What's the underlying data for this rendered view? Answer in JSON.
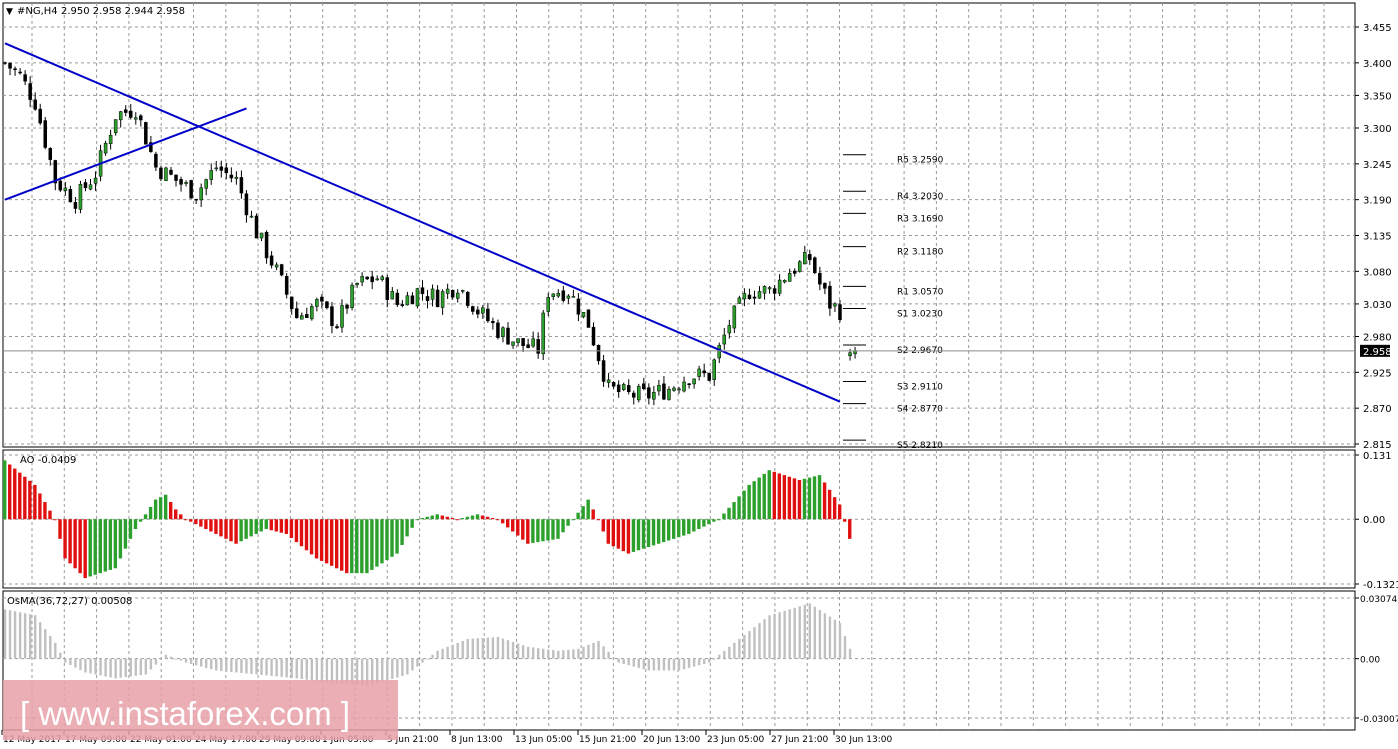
{
  "header": {
    "symbol": "#NG,H4",
    "ohlc": "2.950 2.958 2.944 2.958"
  },
  "price_labels": [
    "3.455",
    "3.400",
    "3.350",
    "3.300",
    "3.245",
    "3.190",
    "3.135",
    "3.080",
    "3.030",
    "2.980",
    "2.925",
    "2.870",
    "2.815"
  ],
  "current_price": "2.958",
  "pivots": [
    {
      "label": "R5 3.2590",
      "value": 3.259
    },
    {
      "label": "R4 3.2030",
      "value": 3.203
    },
    {
      "label": "R3 3.1690",
      "value": 3.169
    },
    {
      "label": "R2 3.1180",
      "value": 3.118
    },
    {
      "label": "R1 3.0570",
      "value": 3.057
    },
    {
      "label": "S1 3.0230",
      "value": 3.023
    },
    {
      "label": "S2 2.9670",
      "value": 2.967
    },
    {
      "label": "S3 2.9110",
      "value": 2.911
    },
    {
      "label": "S4 2.8770",
      "value": 2.877
    },
    {
      "label": "S5 2.8210",
      "value": 2.821
    }
  ],
  "time_labels": [
    "12 May 2017",
    "17 May 09:00",
    "22 May 01:00",
    "24 May 17:00",
    "29 May 09:00",
    "1 Jun 05:00",
    "5 Jun 21:00",
    "8 Jun 13:00",
    "13 Jun 05:00",
    "15 Jun 21:00",
    "20 Jun 13:00",
    "23 Jun 05:00",
    "27 Jun 21:00",
    "30 Jun 13:00"
  ],
  "ao_panel": {
    "label": "AO -0.0409",
    "scale": [
      "0.131",
      "0.00",
      "-0.1321"
    ]
  },
  "osma_panel": {
    "label": "OsMA(36,72,27) 0.00508",
    "scale": [
      "0.03074",
      "0.00",
      "-0.03007"
    ]
  },
  "watermark": "[ www.instaforex.com ]",
  "colors": {
    "bull": "#2ca02c",
    "bear": "#e01010",
    "trend": "#0000c8",
    "hist": "#c0c0c0"
  },
  "chart_data": [
    {
      "type": "candlestick",
      "title": "#NG,H4",
      "ylim": [
        2.815,
        3.455
      ],
      "x_range": [
        "12 May 2017",
        "30 Jun 13:00"
      ],
      "close_anchors": [
        [
          0,
          3.4
        ],
        [
          3,
          3.38
        ],
        [
          6,
          3.34
        ],
        [
          10,
          3.22
        ],
        [
          14,
          3.19
        ],
        [
          18,
          3.23
        ],
        [
          22,
          3.32
        ],
        [
          26,
          3.33
        ],
        [
          30,
          3.24
        ],
        [
          34,
          3.22
        ],
        [
          38,
          3.2
        ],
        [
          42,
          3.24
        ],
        [
          46,
          3.22
        ],
        [
          50,
          3.14
        ],
        [
          54,
          3.08
        ],
        [
          58,
          3.01
        ],
        [
          62,
          3.03
        ],
        [
          66,
          3.0
        ],
        [
          70,
          3.06
        ],
        [
          74,
          3.07
        ],
        [
          78,
          3.03
        ],
        [
          82,
          3.05
        ],
        [
          86,
          3.04
        ],
        [
          90,
          3.06
        ],
        [
          94,
          3.02
        ],
        [
          98,
          2.99
        ],
        [
          102,
          2.97
        ],
        [
          106,
          2.96
        ],
        [
          108,
          3.05
        ],
        [
          112,
          3.05
        ],
        [
          116,
          3.0
        ],
        [
          120,
          2.9
        ],
        [
          124,
          2.89
        ],
        [
          128,
          2.89
        ],
        [
          132,
          2.9
        ],
        [
          136,
          2.92
        ],
        [
          140,
          2.92
        ],
        [
          144,
          3.0
        ],
        [
          148,
          3.05
        ],
        [
          152,
          3.05
        ],
        [
          156,
          3.08
        ],
        [
          160,
          3.1
        ],
        [
          162,
          3.06
        ],
        [
          164,
          3.03
        ],
        [
          166,
          3.02
        ]
      ],
      "gap_after_index": 166,
      "last_bars_close": [
        2.955,
        2.958
      ],
      "trendlines": [
        {
          "from": [
            0,
            3.43
          ],
          "to": [
            166,
            2.88
          ]
        },
        {
          "from": [
            0,
            3.19
          ],
          "to": [
            48,
            3.33
          ]
        }
      ],
      "pivot_levels": [
        3.259,
        3.203,
        3.169,
        3.118,
        3.057,
        3.023,
        2.967,
        2.911,
        2.877,
        2.821
      ]
    },
    {
      "type": "bar",
      "title": "AO -0.0409",
      "ylim": [
        -0.1321,
        0.131
      ],
      "anchors": [
        [
          0,
          0.12
        ],
        [
          6,
          0.07
        ],
        [
          10,
          0.0
        ],
        [
          12,
          -0.08
        ],
        [
          16,
          -0.12
        ],
        [
          22,
          -0.1
        ],
        [
          26,
          -0.02
        ],
        [
          30,
          0.04
        ],
        [
          32,
          0.05
        ],
        [
          34,
          0.02
        ],
        [
          36,
          0.0
        ],
        [
          40,
          -0.02
        ],
        [
          46,
          -0.05
        ],
        [
          52,
          -0.02
        ],
        [
          56,
          -0.03
        ],
        [
          62,
          -0.08
        ],
        [
          68,
          -0.11
        ],
        [
          72,
          -0.11
        ],
        [
          78,
          -0.07
        ],
        [
          82,
          0.0
        ],
        [
          86,
          0.01
        ],
        [
          90,
          0.0
        ],
        [
          94,
          0.01
        ],
        [
          98,
          0.0
        ],
        [
          104,
          -0.05
        ],
        [
          110,
          -0.04
        ],
        [
          116,
          0.04
        ],
        [
          118,
          0.0
        ],
        [
          120,
          -0.05
        ],
        [
          124,
          -0.07
        ],
        [
          130,
          -0.05
        ],
        [
          136,
          -0.03
        ],
        [
          142,
          0.0
        ],
        [
          148,
          0.07
        ],
        [
          152,
          0.1
        ],
        [
          158,
          0.08
        ],
        [
          162,
          0.09
        ],
        [
          166,
          0.03
        ],
        [
          168,
          -0.04
        ]
      ],
      "last_value": -0.0409
    },
    {
      "type": "bar",
      "title": "OsMA(36,72,27) 0.00508",
      "ylim": [
        -0.03007,
        0.03074
      ],
      "anchors": [
        [
          0,
          0.025
        ],
        [
          6,
          0.022
        ],
        [
          10,
          0.008
        ],
        [
          12,
          -0.002
        ],
        [
          16,
          -0.007
        ],
        [
          22,
          -0.01
        ],
        [
          28,
          -0.008
        ],
        [
          32,
          0.002
        ],
        [
          36,
          -0.002
        ],
        [
          42,
          -0.006
        ],
        [
          50,
          -0.008
        ],
        [
          58,
          -0.01
        ],
        [
          64,
          -0.012
        ],
        [
          72,
          -0.014
        ],
        [
          80,
          -0.008
        ],
        [
          86,
          0.004
        ],
        [
          92,
          0.01
        ],
        [
          98,
          0.011
        ],
        [
          104,
          0.006
        ],
        [
          110,
          0.004
        ],
        [
          114,
          0.005
        ],
        [
          118,
          0.009
        ],
        [
          122,
          -0.002
        ],
        [
          128,
          -0.006
        ],
        [
          134,
          -0.006
        ],
        [
          140,
          -0.002
        ],
        [
          146,
          0.01
        ],
        [
          152,
          0.022
        ],
        [
          160,
          0.028
        ],
        [
          166,
          0.018
        ],
        [
          168,
          0.005
        ]
      ],
      "last_value": 0.00508
    }
  ]
}
